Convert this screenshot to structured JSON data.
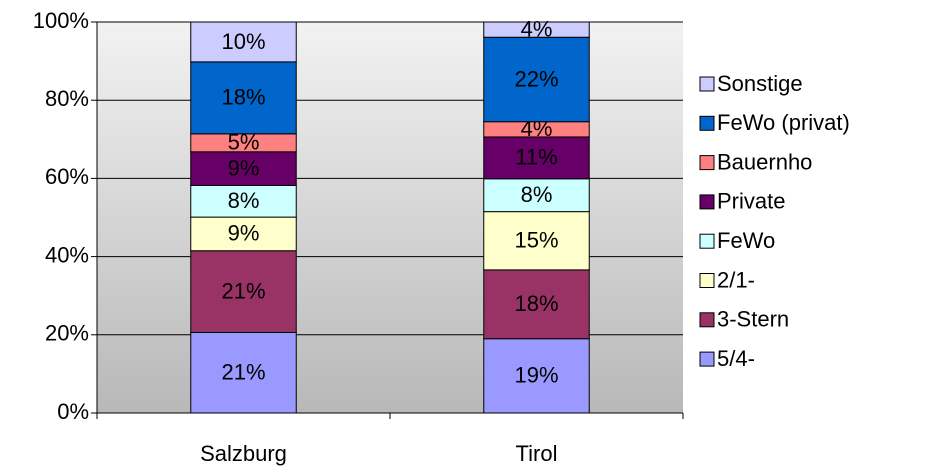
{
  "chart_data": {
    "type": "stacked_bar",
    "categories": [
      "Salzburg",
      "Tirol"
    ],
    "series": [
      {
        "name": "5/4-",
        "color": "#9999ff",
        "values": [
          20.6,
          19
        ],
        "value_labels": [
          "21%",
          "19%"
        ]
      },
      {
        "name": "3-Stern",
        "color": "#993366",
        "values": [
          20.9,
          17.6
        ],
        "value_labels": [
          "21%",
          "18%"
        ]
      },
      {
        "name": "2/1-",
        "color": "#ffffcc",
        "values": [
          8.6,
          14.9
        ],
        "value_labels": [
          "9%",
          "15%"
        ]
      },
      {
        "name": "FeWo",
        "color": "#ccffff",
        "values": [
          8.1,
          8.4
        ],
        "value_labels": [
          "8%",
          "8%"
        ]
      },
      {
        "name": "Private",
        "color": "#660066",
        "values": [
          8.6,
          10.7
        ],
        "value_labels": [
          "9%",
          "11%"
        ]
      },
      {
        "name": "Bauernho",
        "color": "#ff8080",
        "values": [
          4.6,
          3.9
        ],
        "value_labels": [
          "5%",
          "4%"
        ]
      },
      {
        "name": "FeWo (privat)",
        "color": "#0066cc",
        "values": [
          18.4,
          21.6
        ],
        "value_labels": [
          "18%",
          "22%"
        ]
      },
      {
        "name": "Sonstige",
        "color": "#ccccff",
        "values": [
          10.2,
          3.9
        ],
        "value_labels": [
          "10%",
          "4%"
        ]
      }
    ],
    "ylim": [
      0,
      100
    ],
    "yticks": [
      {
        "value": 0,
        "label": "0%"
      },
      {
        "value": 20,
        "label": "20%"
      },
      {
        "value": 40,
        "label": "40%"
      },
      {
        "value": 60,
        "label": "60%"
      },
      {
        "value": 80,
        "label": "80%"
      },
      {
        "value": 100,
        "label": "100%"
      }
    ],
    "grid": true,
    "legend": "right"
  }
}
